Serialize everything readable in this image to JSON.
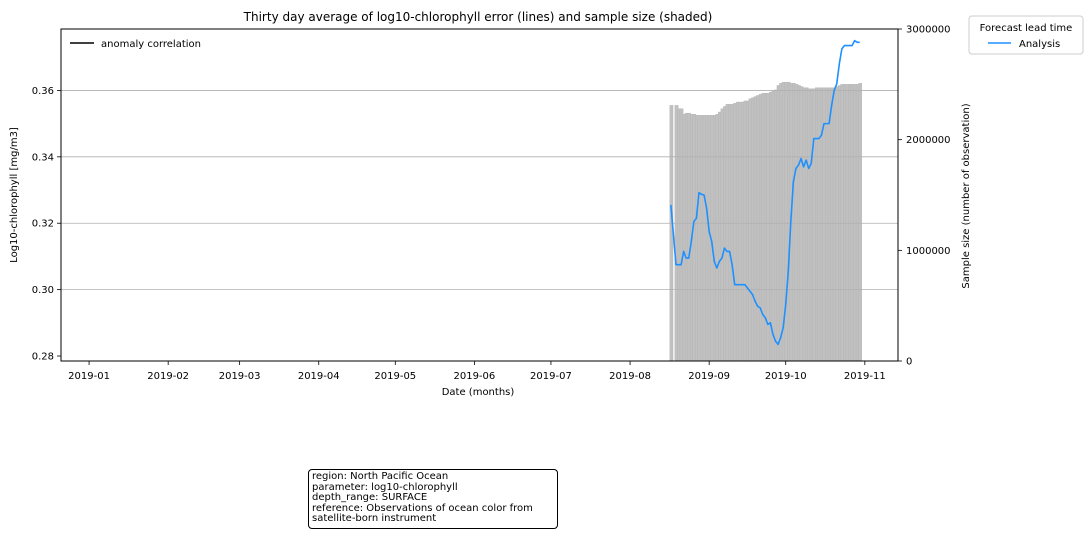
{
  "chart_data": {
    "type": "line",
    "title": "Thirty day average of log10-chlorophyll error (lines) and sample size (shaded)",
    "xlabel": "Date (months)",
    "ylabel": "Log10-chlorophyll [mg/m3]",
    "y2label": "Sample size (number of observation)",
    "xlim": [
      "2018-12-21",
      "2019-11-14"
    ],
    "ylim": [
      0.2785,
      0.3785
    ],
    "y2lim": [
      0,
      3000000
    ],
    "grid": "y-major",
    "x_ticks": [
      "2019-01",
      "2019-02",
      "2019-03",
      "2019-04",
      "2019-05",
      "2019-06",
      "2019-07",
      "2019-08",
      "2019-09",
      "2019-10",
      "2019-11"
    ],
    "y_ticks": [
      "0.28",
      "0.30",
      "0.32",
      "0.34",
      "0.36"
    ],
    "y2_ticks": [
      "0",
      "1000000",
      "2000000",
      "3000000"
    ],
    "legend_inner": {
      "placement": "upper-left",
      "label": "anomaly correlation",
      "color": "#000000"
    },
    "legend_outer": {
      "placement": "outside-upper-right",
      "title": "Forecast lead time",
      "label": "Analysis",
      "color": "#1e90ff"
    },
    "series": [
      {
        "name": "Analysis",
        "color": "#1e90ff",
        "x": [
          "2019-08-17",
          "2019-08-19",
          "2019-08-20",
          "2019-08-21",
          "2019-08-22",
          "2019-08-23",
          "2019-08-24",
          "2019-08-25",
          "2019-08-26",
          "2019-08-27",
          "2019-08-28",
          "2019-08-29",
          "2019-08-30",
          "2019-08-31",
          "2019-09-01",
          "2019-09-02",
          "2019-09-03",
          "2019-09-04",
          "2019-09-05",
          "2019-09-06",
          "2019-09-07",
          "2019-09-08",
          "2019-09-09",
          "2019-09-10",
          "2019-09-11",
          "2019-09-12",
          "2019-09-13",
          "2019-09-14",
          "2019-09-15",
          "2019-09-16",
          "2019-09-17",
          "2019-09-18",
          "2019-09-19",
          "2019-09-20",
          "2019-09-21",
          "2019-09-22",
          "2019-09-23",
          "2019-09-24",
          "2019-09-25",
          "2019-09-26",
          "2019-09-27",
          "2019-09-28",
          "2019-09-29",
          "2019-09-30",
          "2019-10-01",
          "2019-10-02",
          "2019-10-03",
          "2019-10-04",
          "2019-10-05",
          "2019-10-06",
          "2019-10-07",
          "2019-10-08",
          "2019-10-09",
          "2019-10-10",
          "2019-10-11",
          "2019-10-12",
          "2019-10-13",
          "2019-10-14",
          "2019-10-15",
          "2019-10-16",
          "2019-10-17",
          "2019-10-18",
          "2019-10-19",
          "2019-10-20",
          "2019-10-21",
          "2019-10-22",
          "2019-10-23",
          "2019-10-24",
          "2019-10-25",
          "2019-10-26",
          "2019-10-27",
          "2019-10-28",
          "2019-10-29",
          "2019-10-30"
        ],
        "y": [
          0.3255,
          0.3075,
          0.3075,
          0.3075,
          0.3115,
          0.3095,
          0.3095,
          0.3145,
          0.3205,
          0.3215,
          0.3292,
          0.3287,
          0.3285,
          0.3245,
          0.3175,
          0.3145,
          0.3085,
          0.3065,
          0.3085,
          0.3095,
          0.3125,
          0.3115,
          0.3115,
          0.3075,
          0.3015,
          0.3015,
          0.3015,
          0.3015,
          0.3015,
          0.3005,
          0.2995,
          0.2985,
          0.2965,
          0.295,
          0.2945,
          0.2925,
          0.2915,
          0.2895,
          0.29,
          0.2865,
          0.2845,
          0.2835,
          0.2855,
          0.2885,
          0.2955,
          0.3055,
          0.3205,
          0.3325,
          0.3365,
          0.3375,
          0.3395,
          0.337,
          0.339,
          0.3365,
          0.338,
          0.3455,
          0.3455,
          0.3455,
          0.3465,
          0.35,
          0.35,
          0.35,
          0.3555,
          0.36,
          0.362,
          0.368,
          0.3725,
          0.3735,
          0.3735,
          0.3735,
          0.3735,
          0.375,
          0.3745,
          0.3745
        ]
      }
    ],
    "sample_size": {
      "name": "sample size",
      "color": "#c0c0c0",
      "x": [
        "2019-08-17",
        "2019-08-19",
        "2019-08-20",
        "2019-08-21",
        "2019-08-22",
        "2019-08-23",
        "2019-08-24",
        "2019-08-25",
        "2019-08-26",
        "2019-08-27",
        "2019-08-28",
        "2019-08-29",
        "2019-08-30",
        "2019-08-31",
        "2019-09-01",
        "2019-09-02",
        "2019-09-03",
        "2019-09-04",
        "2019-09-05",
        "2019-09-06",
        "2019-09-07",
        "2019-09-08",
        "2019-09-09",
        "2019-09-10",
        "2019-09-11",
        "2019-09-12",
        "2019-09-13",
        "2019-09-14",
        "2019-09-15",
        "2019-09-16",
        "2019-09-17",
        "2019-09-18",
        "2019-09-19",
        "2019-09-20",
        "2019-09-21",
        "2019-09-22",
        "2019-09-23",
        "2019-09-24",
        "2019-09-25",
        "2019-09-26",
        "2019-09-27",
        "2019-09-28",
        "2019-09-29",
        "2019-09-30",
        "2019-10-01",
        "2019-10-02",
        "2019-10-03",
        "2019-10-04",
        "2019-10-05",
        "2019-10-06",
        "2019-10-07",
        "2019-10-08",
        "2019-10-09",
        "2019-10-10",
        "2019-10-11",
        "2019-10-12",
        "2019-10-13",
        "2019-10-14",
        "2019-10-15",
        "2019-10-16",
        "2019-10-17",
        "2019-10-18",
        "2019-10-19",
        "2019-10-20",
        "2019-10-21",
        "2019-10-22",
        "2019-10-23",
        "2019-10-24",
        "2019-10-25",
        "2019-10-26",
        "2019-10-27",
        "2019-10-28",
        "2019-10-29",
        "2019-10-30"
      ],
      "values": [
        2310000,
        2310000,
        2280000,
        2280000,
        2230000,
        2240000,
        2240000,
        2230000,
        2230000,
        2220000,
        2220000,
        2220000,
        2220000,
        2220000,
        2220000,
        2220000,
        2220000,
        2230000,
        2250000,
        2280000,
        2300000,
        2320000,
        2320000,
        2320000,
        2330000,
        2340000,
        2340000,
        2340000,
        2350000,
        2350000,
        2370000,
        2380000,
        2390000,
        2400000,
        2410000,
        2420000,
        2420000,
        2420000,
        2430000,
        2440000,
        2450000,
        2490000,
        2510000,
        2520000,
        2520000,
        2520000,
        2510000,
        2510000,
        2500000,
        2490000,
        2480000,
        2470000,
        2470000,
        2460000,
        2460000,
        2460000,
        2470000,
        2470000,
        2470000,
        2470000,
        2470000,
        2470000,
        2470000,
        2470000,
        2480000,
        2490000,
        2500000,
        2500000,
        2500000,
        2500000,
        2500000,
        2500000,
        2500000,
        2510000
      ]
    }
  },
  "info_box": {
    "lines": [
      "region: North Pacific Ocean",
      "parameter: log10-chlorophyll",
      "depth_range: SURFACE",
      "reference: Observations of ocean color from",
      "satellite-born instrument"
    ]
  }
}
